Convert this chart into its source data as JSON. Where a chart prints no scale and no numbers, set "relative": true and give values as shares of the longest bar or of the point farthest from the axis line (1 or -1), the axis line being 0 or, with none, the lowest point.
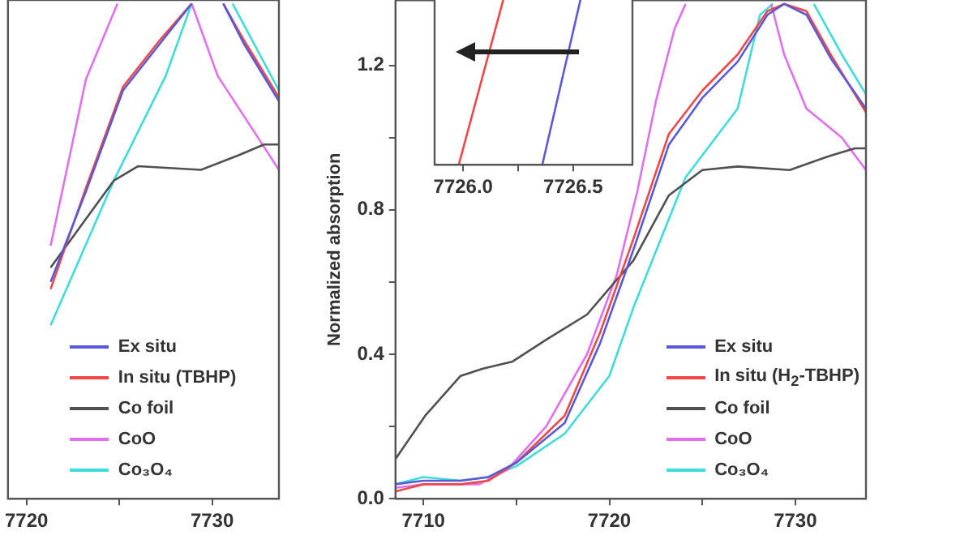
{
  "chart_data": [
    {
      "type": "line",
      "xlim": [
        7719,
        7733.6
      ],
      "xticks": [
        7720,
        {
          "value": 7725,
          "label": null
        },
        7730
      ],
      "ylim": [
        0,
        1.38
      ],
      "tick_labels": "x",
      "grid": false,
      "marker": "none",
      "legend": "bottom left",
      "series": [
        {
          "name": "Ex situ",
          "color": "#5a5ad8",
          "x": [
            7721.3,
            7723.2,
            7725.2,
            7727.2,
            7728.9,
            7729.8,
            7730.6,
            7731.7,
            7733.6
          ],
          "values": [
            0.6,
            0.85,
            1.13,
            1.26,
            1.37,
            null,
            1.37,
            1.26,
            1.1
          ]
        },
        {
          "name": "In situ (TBHP)",
          "color": "#f04848",
          "x": [
            7721.3,
            7723.2,
            7725.2,
            7727.2,
            7728.9,
            7729.8,
            7730.6,
            7731.7,
            7733.6
          ],
          "values": [
            0.58,
            0.86,
            1.14,
            1.27,
            1.37,
            null,
            1.37,
            1.27,
            1.11
          ]
        },
        {
          "name": "Co foil",
          "color": "#505050",
          "x": [
            7721.3,
            7724.7,
            7726.0,
            7729.4,
            7731.4,
            7732.8,
            7733.6
          ],
          "values": [
            0.64,
            0.88,
            0.92,
            0.91,
            0.95,
            0.98,
            0.98
          ]
        },
        {
          "name": "CoO",
          "color": "#e070f0",
          "x": [
            7721.3,
            7723.2,
            7724.9,
            7726.5,
            7728.9,
            7730.3,
            7731.7,
            7733.6
          ],
          "values": [
            0.7,
            1.16,
            1.37,
            null,
            1.37,
            1.17,
            1.06,
            0.91
          ]
        },
        {
          "name": "Co₃O₄",
          "color": "#40dcdc",
          "x": [
            7721.3,
            7724.7,
            7727.5,
            7728.9,
            7730,
            7731.1,
            7733.6
          ],
          "values": [
            0.48,
            0.88,
            1.17,
            1.37,
            null,
            1.37,
            1.13
          ]
        }
      ]
    },
    {
      "type": "line",
      "ylabel": "Normalized absorption",
      "xlim": [
        7708.5,
        7733.8
      ],
      "xticks": [
        7710,
        {
          "value": 7715,
          "label": null
        },
        7720,
        {
          "value": 7725,
          "label": null
        },
        7730
      ],
      "ylim": [
        0,
        1.38
      ],
      "yticks": [
        {
          "value": 0,
          "label": "0.0"
        },
        {
          "value": 0.2,
          "label": null
        },
        0.4,
        {
          "value": 0.6,
          "label": null
        },
        0.8,
        {
          "value": 1.0,
          "label": null
        },
        1.2
      ],
      "grid": false,
      "marker": "none",
      "legend": "bottom right",
      "series": [
        {
          "name": "Ex situ",
          "color": "#5a5ad8",
          "x": [
            7708.5,
            7710,
            7712,
            7713.5,
            7715,
            7717.6,
            7719.5,
            7721.3,
            7723.2,
            7725,
            7726.9,
            7728.5,
            7729.4,
            7730.6,
            7731.9,
            7733.8
          ],
          "values": [
            0.04,
            0.05,
            0.05,
            0.06,
            0.1,
            0.21,
            0.43,
            0.69,
            0.98,
            1.11,
            1.21,
            1.34,
            1.37,
            1.34,
            1.22,
            1.08
          ]
        },
        {
          "name": "In situ (H$_{2}$-TBHP)",
          "color": "#f04848",
          "x": [
            7708.5,
            7710,
            7712,
            7713.5,
            7715,
            7717.6,
            7719.5,
            7721.3,
            7723.2,
            7725,
            7726.9,
            7728.5,
            7729.4,
            7730.6,
            7731.9,
            7733.8
          ],
          "values": [
            0.02,
            0.04,
            0.04,
            0.05,
            0.1,
            0.23,
            0.46,
            0.72,
            1.01,
            1.13,
            1.23,
            1.35,
            1.37,
            1.35,
            1.23,
            1.07
          ]
        },
        {
          "name": "Co foil",
          "color": "#505050",
          "x": [
            7708.5,
            7710.1,
            7712,
            7713.2,
            7714.8,
            7716.6,
            7718.8,
            7721.3,
            7723.2,
            7725,
            7726.9,
            7729.7,
            7731.9,
            7733.2,
            7733.8
          ],
          "values": [
            0.11,
            0.23,
            0.34,
            0.36,
            0.38,
            0.44,
            0.51,
            0.66,
            0.84,
            0.91,
            0.92,
            0.91,
            0.95,
            0.97,
            0.97
          ]
        },
        {
          "name": "CoO",
          "color": "#e070f0",
          "x": [
            7708.5,
            7710,
            7713,
            7714.5,
            7716.6,
            7718.8,
            7720.4,
            7721.5,
            7722.5,
            7723.5,
            7724.1,
            7726,
            7728.7,
            7729.4,
            7730.6,
            7732.5,
            7733.8
          ],
          "values": [
            0.03,
            0.04,
            0.04,
            0.08,
            0.2,
            0.4,
            0.62,
            0.85,
            1.1,
            1.3,
            1.37,
            null,
            1.37,
            1.23,
            1.08,
            1.0,
            0.91
          ]
        },
        {
          "name": "Co₃O₄",
          "color": "#40dcdc",
          "x": [
            7708.5,
            7710,
            7712,
            7713.5,
            7715,
            7717.6,
            7720,
            7721.3,
            7724.1,
            7726.9,
            7728.1,
            7728.8,
            7730,
            7731,
            7732.5,
            7733.8
          ],
          "values": [
            0.04,
            0.06,
            0.05,
            0.06,
            0.09,
            0.18,
            0.34,
            0.53,
            0.89,
            1.08,
            1.34,
            1.37,
            null,
            1.37,
            1.23,
            1.12
          ]
        }
      ]
    },
    {
      "type": "line",
      "relative": true,
      "xlim": [
        7725.87,
        7726.77
      ],
      "xticks": [
        {
          "value": 7726,
          "label": "7726.0"
        },
        {
          "value": 7726.25,
          "label": null
        },
        {
          "value": 7726.5,
          "label": "7726.5"
        }
      ],
      "tick_labels": "x",
      "grid": false,
      "marker": "none",
      "series": [
        {
          "color": "#f04848",
          "x": [
            7725.98,
            7726.19
          ],
          "values": [
            0,
            1
          ]
        },
        {
          "color": "#5a5ad8",
          "x": [
            7726.36,
            7726.54
          ],
          "values": [
            0,
            1
          ]
        }
      ]
    }
  ]
}
